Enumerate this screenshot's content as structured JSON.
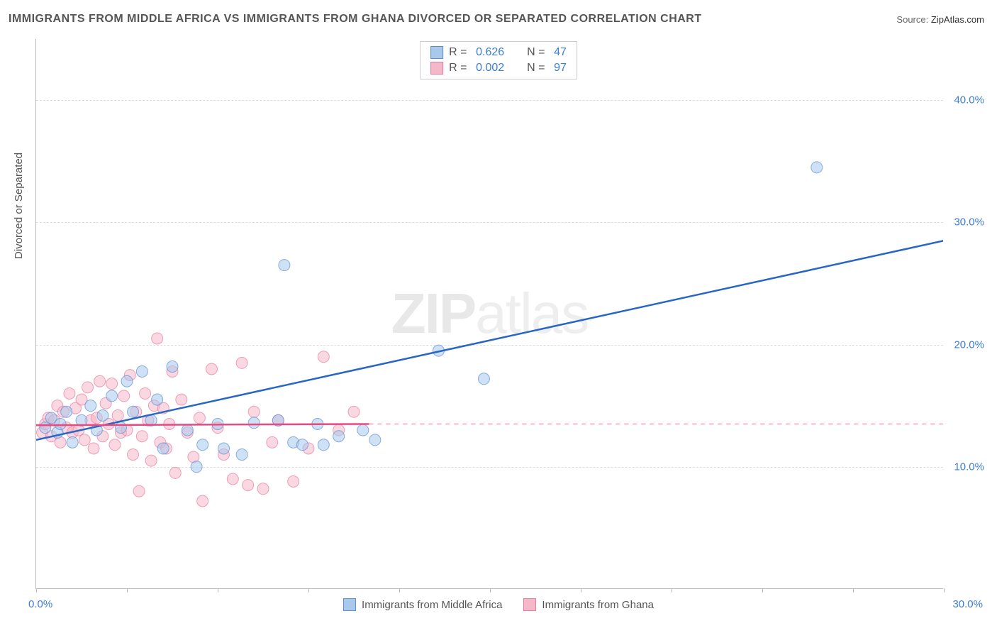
{
  "title": "IMMIGRANTS FROM MIDDLE AFRICA VS IMMIGRANTS FROM GHANA DIVORCED OR SEPARATED CORRELATION CHART",
  "source_label": "Source:",
  "source_value": "ZipAtlas.com",
  "y_axis_title": "Divorced or Separated",
  "watermark_bold": "ZIP",
  "watermark_light": "atlas",
  "chart": {
    "type": "scatter",
    "background_color": "#ffffff",
    "grid_color": "#dddddd",
    "axis_color": "#bbbbbb",
    "text_color": "#555555",
    "x_range": [
      0,
      30
    ],
    "y_range": [
      0,
      45
    ],
    "x_ticks": [
      0,
      3,
      6,
      9,
      12,
      15,
      18,
      21,
      24,
      27,
      30
    ],
    "y_ticks": [
      10,
      20,
      30,
      40
    ],
    "y_tick_labels": [
      "10.0%",
      "20.0%",
      "30.0%",
      "40.0%"
    ],
    "x_label_min": "0.0%",
    "x_label_max": "30.0%",
    "marker_radius": 8,
    "marker_opacity": 0.55,
    "line_width_solid": 2.5,
    "line_width_dashed": 1.5,
    "series": [
      {
        "name_label": "Immigrants from Middle Africa",
        "color_fill": "#a8c8ec",
        "color_stroke": "#5b8fd6",
        "r_value": "0.626",
        "n_value": "47",
        "trend_solid": {
          "x1": 0,
          "y1": 12.5,
          "x2": 11,
          "y2": 13.4
        },
        "trend_overall": {
          "x1": 0,
          "y1": 12.2,
          "x2": 30,
          "y2": 28.5
        },
        "points": [
          [
            0.3,
            13.2
          ],
          [
            0.5,
            14.0
          ],
          [
            0.7,
            12.8
          ],
          [
            0.8,
            13.5
          ],
          [
            1.0,
            14.5
          ],
          [
            1.2,
            12.0
          ],
          [
            1.5,
            13.8
          ],
          [
            1.8,
            15.0
          ],
          [
            2.0,
            13.0
          ],
          [
            2.2,
            14.2
          ],
          [
            2.5,
            15.8
          ],
          [
            2.8,
            13.2
          ],
          [
            3.0,
            17.0
          ],
          [
            3.2,
            14.5
          ],
          [
            3.5,
            17.8
          ],
          [
            3.8,
            13.8
          ],
          [
            4.0,
            15.5
          ],
          [
            4.2,
            11.5
          ],
          [
            4.5,
            18.2
          ],
          [
            5.0,
            13.0
          ],
          [
            5.3,
            10.0
          ],
          [
            5.5,
            11.8
          ],
          [
            6.0,
            13.5
          ],
          [
            6.2,
            11.5
          ],
          [
            6.8,
            11.0
          ],
          [
            7.2,
            13.6
          ],
          [
            8.0,
            13.8
          ],
          [
            8.2,
            26.5
          ],
          [
            8.5,
            12.0
          ],
          [
            8.8,
            11.8
          ],
          [
            9.3,
            13.5
          ],
          [
            9.5,
            11.8
          ],
          [
            10.0,
            12.5
          ],
          [
            10.8,
            13.0
          ],
          [
            11.2,
            12.2
          ],
          [
            13.3,
            19.5
          ],
          [
            14.8,
            17.2
          ],
          [
            25.8,
            34.5
          ]
        ]
      },
      {
        "name_label": "Immigrants from Ghana",
        "color_fill": "#f5b8c8",
        "color_stroke": "#e87ca0",
        "r_value": "0.002",
        "n_value": "97",
        "trend_solid": {
          "x1": 0,
          "y1": 13.4,
          "x2": 11,
          "y2": 13.5
        },
        "trend_dashed": {
          "x1": 11,
          "y1": 13.5,
          "x2": 30,
          "y2": 13.5
        },
        "points": [
          [
            0.2,
            12.8
          ],
          [
            0.3,
            13.5
          ],
          [
            0.4,
            14.0
          ],
          [
            0.5,
            12.5
          ],
          [
            0.6,
            13.8
          ],
          [
            0.7,
            15.0
          ],
          [
            0.8,
            12.0
          ],
          [
            0.9,
            14.5
          ],
          [
            1.0,
            13.2
          ],
          [
            1.1,
            16.0
          ],
          [
            1.2,
            12.8
          ],
          [
            1.3,
            14.8
          ],
          [
            1.4,
            13.0
          ],
          [
            1.5,
            15.5
          ],
          [
            1.6,
            12.2
          ],
          [
            1.7,
            16.5
          ],
          [
            1.8,
            13.8
          ],
          [
            1.9,
            11.5
          ],
          [
            2.0,
            14.0
          ],
          [
            2.1,
            17.0
          ],
          [
            2.2,
            12.5
          ],
          [
            2.3,
            15.2
          ],
          [
            2.4,
            13.5
          ],
          [
            2.5,
            16.8
          ],
          [
            2.6,
            11.8
          ],
          [
            2.7,
            14.2
          ],
          [
            2.8,
            12.8
          ],
          [
            2.9,
            15.8
          ],
          [
            3.0,
            13.0
          ],
          [
            3.1,
            17.5
          ],
          [
            3.2,
            11.0
          ],
          [
            3.3,
            14.5
          ],
          [
            3.4,
            8.0
          ],
          [
            3.5,
            12.5
          ],
          [
            3.6,
            16.0
          ],
          [
            3.7,
            13.8
          ],
          [
            3.8,
            10.5
          ],
          [
            3.9,
            15.0
          ],
          [
            4.0,
            20.5
          ],
          [
            4.1,
            12.0
          ],
          [
            4.2,
            14.8
          ],
          [
            4.3,
            11.5
          ],
          [
            4.4,
            13.5
          ],
          [
            4.5,
            17.8
          ],
          [
            4.6,
            9.5
          ],
          [
            4.8,
            15.5
          ],
          [
            5.0,
            12.8
          ],
          [
            5.2,
            10.8
          ],
          [
            5.4,
            14.0
          ],
          [
            5.5,
            7.2
          ],
          [
            5.8,
            18.0
          ],
          [
            6.0,
            13.2
          ],
          [
            6.2,
            11.0
          ],
          [
            6.5,
            9.0
          ],
          [
            6.8,
            18.5
          ],
          [
            7.0,
            8.5
          ],
          [
            7.2,
            14.5
          ],
          [
            7.5,
            8.2
          ],
          [
            7.8,
            12.0
          ],
          [
            8.0,
            13.8
          ],
          [
            8.5,
            8.8
          ],
          [
            9.0,
            11.5
          ],
          [
            9.5,
            19.0
          ],
          [
            10.0,
            13.0
          ],
          [
            10.5,
            14.5
          ]
        ]
      }
    ]
  },
  "legend_top": {
    "r_label": "R  =",
    "n_label": "N  ="
  }
}
